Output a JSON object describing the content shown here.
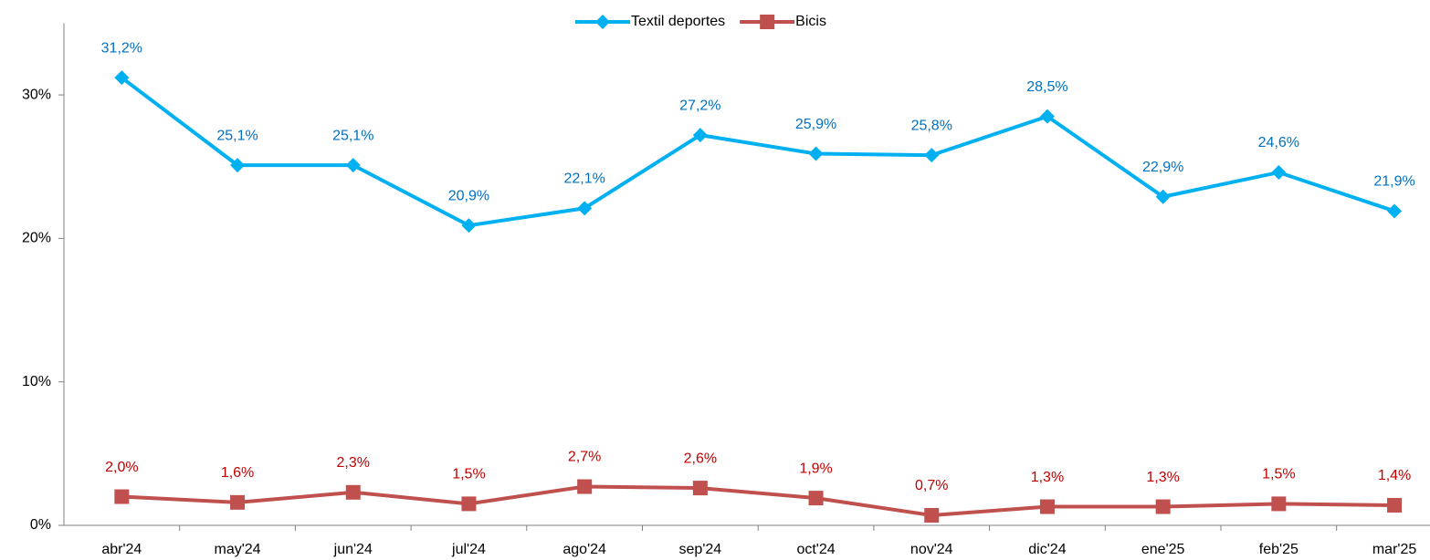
{
  "chart_data": {
    "type": "line",
    "categories": [
      "abr'24",
      "may'24",
      "jun'24",
      "jul'24",
      "ago'24",
      "sep'24",
      "oct'24",
      "nov'24",
      "dic'24",
      "ene'25",
      "feb'25",
      "mar'25"
    ],
    "series": [
      {
        "name": "Textil deportes",
        "color": "#00b0f0",
        "label_color": "#0070c0",
        "marker": "diamond",
        "values": [
          31.2,
          25.1,
          25.1,
          20.9,
          22.1,
          27.2,
          25.9,
          25.8,
          28.5,
          22.9,
          24.6,
          21.9
        ],
        "value_labels": [
          "31,2%",
          "25,1%",
          "25,1%",
          "20,9%",
          "22,1%",
          "27,2%",
          "25,9%",
          "25,8%",
          "28,5%",
          "22,9%",
          "24,6%",
          "21,9%"
        ]
      },
      {
        "name": "Bicis",
        "color": "#c0504d",
        "label_color": "#c00000",
        "marker": "square",
        "values": [
          2.0,
          1.6,
          2.3,
          1.5,
          2.7,
          2.6,
          1.9,
          0.7,
          1.3,
          1.3,
          1.5,
          1.4
        ],
        "value_labels": [
          "2,0%",
          "1,6%",
          "2,3%",
          "1,5%",
          "2,7%",
          "2,6%",
          "1,9%",
          "0,7%",
          "1,3%",
          "1,3%",
          "1,5%",
          "1,4%"
        ]
      }
    ],
    "ylim": [
      0,
      35
    ],
    "yticks": [
      {
        "value": 0,
        "label": "0%"
      },
      {
        "value": 10,
        "label": "10%"
      },
      {
        "value": 20,
        "label": "20%"
      },
      {
        "value": 30,
        "label": "30%"
      }
    ],
    "legend": "top"
  }
}
